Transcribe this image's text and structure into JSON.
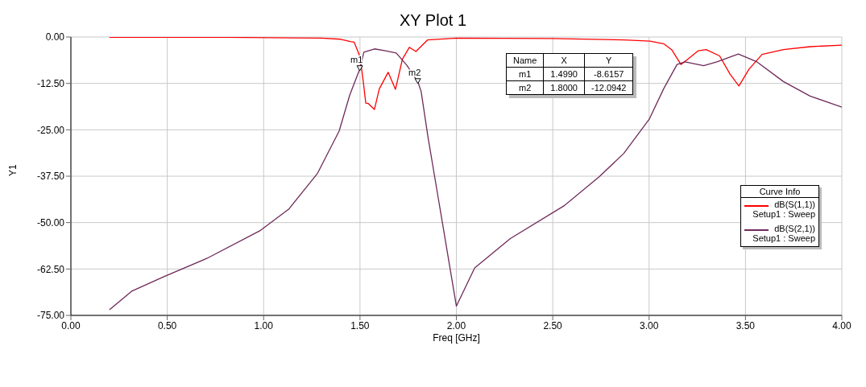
{
  "chart_data": {
    "type": "line",
    "title": "XY Plot 1",
    "xlabel": "Freq [GHz]",
    "ylabel": "Y1",
    "legend_title": "Curve Info",
    "xlim": [
      0,
      4
    ],
    "ylim": [
      -75,
      0
    ],
    "xticks": [
      {
        "value": 0,
        "label": "0.00"
      },
      {
        "value": 0.5,
        "label": "0.50"
      },
      {
        "value": 1,
        "label": "1.00"
      },
      {
        "value": 1.5,
        "label": "1.50"
      },
      {
        "value": 2,
        "label": "2.00"
      },
      {
        "value": 2.5,
        "label": "2.50"
      },
      {
        "value": 3,
        "label": "3.00"
      },
      {
        "value": 3.5,
        "label": "3.50"
      },
      {
        "value": 4,
        "label": "4.00"
      }
    ],
    "yticks": [
      {
        "value": 0,
        "label": "0.00"
      },
      {
        "value": -12.5,
        "label": "-12.50"
      },
      {
        "value": -25,
        "label": "-25.00"
      },
      {
        "value": -37.5,
        "label": "-37.50"
      },
      {
        "value": -50,
        "label": "-50.00"
      },
      {
        "value": -62.5,
        "label": "-62.50"
      },
      {
        "value": -75,
        "label": "-75.00"
      }
    ],
    "grid": true,
    "legend": "right",
    "marker": "none",
    "line_style": "solid",
    "series": [
      {
        "name": "dB(S(1,1))\nSetup1 : Sweep",
        "color": "#ff0000",
        "x": [
          0.2,
          0.8,
          1.3,
          1.4,
          1.45,
          1.47,
          1.5,
          1.517,
          1.53,
          1.542,
          1.575,
          1.6,
          1.646,
          1.684,
          1.72,
          1.756,
          1.79,
          1.85,
          2.0,
          2.5,
          2.87,
          3.005,
          3.075,
          3.117,
          3.165,
          3.2,
          3.255,
          3.296,
          3.366,
          3.42,
          3.466,
          3.518,
          3.586,
          3.697,
          3.835,
          4.0
        ],
        "values": [
          -0.1,
          -0.1,
          -0.3,
          -0.6,
          -1.2,
          -1.4,
          -5.3,
          -12,
          -17.8,
          -17.9,
          -19.5,
          -14,
          -9.5,
          -14.1,
          -6,
          -2.8,
          -3.9,
          -0.8,
          -0.3,
          -0.4,
          -0.8,
          -1.1,
          -1.8,
          -3.4,
          -7.4,
          -6,
          -3.7,
          -3.4,
          -5.1,
          -10,
          -13.2,
          -8.7,
          -4.7,
          -3.4,
          -2.6,
          -2.2
        ]
      },
      {
        "name": "dB(S(2,1))\nSetup1 : Sweep",
        "color": "#6e2a5a",
        "x": [
          0.2,
          0.318,
          0.485,
          0.707,
          0.984,
          1.13,
          1.28,
          1.392,
          1.447,
          1.499,
          1.52,
          1.575,
          1.632,
          1.688,
          1.743,
          1.8,
          1.817,
          1.853,
          1.91,
          2.0,
          2.095,
          2.28,
          2.558,
          2.742,
          2.868,
          3.0,
          3.076,
          3.145,
          3.186,
          3.283,
          3.352,
          3.463,
          3.56,
          3.697,
          3.835,
          4.0
        ],
        "values": [
          -73.5,
          -68.4,
          -64.5,
          -59.6,
          -52.1,
          -46.4,
          -36.7,
          -25.3,
          -15.6,
          -8.6,
          -4.1,
          -3.2,
          -3.7,
          -4.3,
          -7.6,
          -12.1,
          -14.6,
          -27,
          -44.6,
          -72.5,
          -62.2,
          -54.3,
          -45.5,
          -37.6,
          -31.4,
          -22.2,
          -13.9,
          -7.4,
          -6.7,
          -7.7,
          -6.7,
          -4.6,
          -6.7,
          -12,
          -15.9,
          -18.9
        ]
      }
    ],
    "annotations": [
      {
        "text": "m1",
        "x": 1.499,
        "y": -8.6157
      },
      {
        "text": "m2",
        "x": 1.8,
        "y": -12.0942
      },
      "Name",
      "X",
      "Y",
      "1.4990",
      "-8.6157",
      "1.8000",
      "-12.0942"
    ]
  }
}
